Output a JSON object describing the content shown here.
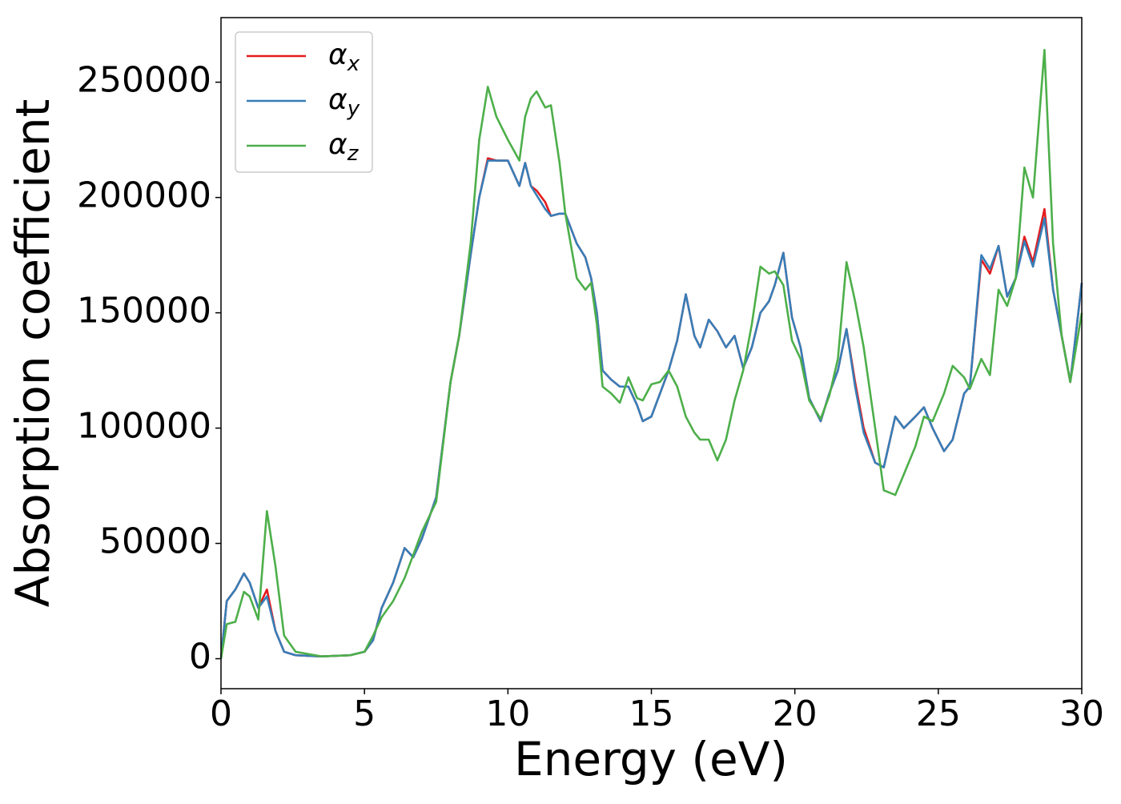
{
  "chart_data": {
    "type": "line",
    "xlabel": "Energy (eV)",
    "ylabel": "Absorption coefficient",
    "x": [
      0,
      0.2,
      0.5,
      0.8,
      1.0,
      1.3,
      1.6,
      1.9,
      2.2,
      2.6,
      3.5,
      4.5,
      5.0,
      5.3,
      5.6,
      6.0,
      6.4,
      6.7,
      7.0,
      7.5,
      8.0,
      8.3,
      8.7,
      9.0,
      9.3,
      9.6,
      10.0,
      10.4,
      10.6,
      10.8,
      11.0,
      11.3,
      11.5,
      11.8,
      12.0,
      12.4,
      12.7,
      12.9,
      13.1,
      13.3,
      13.6,
      13.9,
      14.2,
      14.5,
      14.7,
      15.0,
      15.3,
      15.6,
      15.9,
      16.2,
      16.5,
      16.7,
      17.0,
      17.3,
      17.6,
      17.9,
      18.2,
      18.5,
      18.8,
      19.1,
      19.3,
      19.6,
      19.9,
      20.2,
      20.5,
      20.9,
      21.2,
      21.5,
      21.8,
      22.1,
      22.4,
      22.8,
      23.1,
      23.5,
      23.8,
      24.2,
      24.5,
      24.8,
      25.2,
      25.5,
      25.9,
      26.1,
      26.5,
      26.8,
      27.1,
      27.4,
      27.7,
      28.0,
      28.3,
      28.7,
      29.0,
      29.3,
      29.6,
      30.0
    ],
    "series": [
      {
        "name": "αx",
        "color": "#e41a1c",
        "values": [
          0,
          25000,
          30000,
          37000,
          33000,
          22000,
          30000,
          12000,
          3000,
          1500,
          1000,
          1500,
          3000,
          8000,
          22000,
          33000,
          48000,
          44000,
          52000,
          70000,
          120000,
          140000,
          175000,
          200000,
          217000,
          216000,
          216000,
          205000,
          215000,
          205000,
          203000,
          198000,
          192000,
          193000,
          193000,
          180000,
          174000,
          165000,
          150000,
          125000,
          121000,
          118000,
          118000,
          110000,
          103000,
          105000,
          115000,
          125000,
          138000,
          158000,
          140000,
          135000,
          147000,
          142000,
          135000,
          140000,
          126000,
          135000,
          150000,
          155000,
          162000,
          176000,
          148000,
          135000,
          113000,
          103000,
          115000,
          125000,
          143000,
          120000,
          100000,
          85000,
          83000,
          105000,
          100000,
          105000,
          109000,
          100000,
          90000,
          95000,
          115000,
          118000,
          173000,
          167000,
          179000,
          157000,
          165000,
          183000,
          172000,
          195000,
          160000,
          140000,
          120000,
          163000
        ]
      },
      {
        "name": "αy",
        "color": "#377eb8",
        "values": [
          0,
          25000,
          30000,
          37000,
          33000,
          22000,
          27000,
          12000,
          3000,
          1500,
          1000,
          1500,
          3000,
          8000,
          22000,
          33000,
          48000,
          44000,
          52000,
          70000,
          120000,
          140000,
          175000,
          200000,
          216000,
          216000,
          216000,
          205000,
          215000,
          205000,
          201000,
          195000,
          192000,
          193000,
          193000,
          180000,
          174000,
          165000,
          150000,
          125000,
          121000,
          118000,
          118000,
          110000,
          103000,
          105000,
          115000,
          125000,
          138000,
          158000,
          140000,
          135000,
          147000,
          142000,
          135000,
          140000,
          126000,
          135000,
          150000,
          155000,
          162000,
          176000,
          148000,
          135000,
          113000,
          103000,
          115000,
          125000,
          143000,
          118000,
          98000,
          85000,
          83000,
          105000,
          100000,
          105000,
          109000,
          100000,
          90000,
          95000,
          115000,
          118000,
          175000,
          169000,
          179000,
          157000,
          165000,
          181000,
          170000,
          191000,
          160000,
          140000,
          120000,
          163000
        ]
      },
      {
        "name": "αz",
        "color": "#4daf4a",
        "values": [
          0,
          15000,
          16000,
          29000,
          27000,
          17000,
          64000,
          40000,
          10000,
          3000,
          1000,
          1500,
          3000,
          10000,
          18000,
          25000,
          35000,
          45000,
          55000,
          68000,
          120000,
          140000,
          180000,
          225000,
          248000,
          235000,
          225000,
          216000,
          235000,
          243000,
          246000,
          239000,
          240000,
          215000,
          193000,
          165000,
          160000,
          163000,
          145000,
          118000,
          115000,
          111000,
          122000,
          113000,
          112000,
          119000,
          120000,
          125000,
          118000,
          105000,
          98000,
          95000,
          95000,
          86000,
          95000,
          112000,
          125000,
          145000,
          170000,
          167000,
          168000,
          162000,
          138000,
          130000,
          112000,
          104000,
          114000,
          130000,
          172000,
          155000,
          135000,
          100000,
          73000,
          71000,
          80000,
          92000,
          105000,
          103000,
          115000,
          127000,
          122000,
          117000,
          130000,
          123000,
          160000,
          153000,
          165000,
          213000,
          200000,
          264000,
          180000,
          140000,
          120000,
          150000
        ]
      }
    ],
    "xlim": [
      0,
      30
    ],
    "xticks": [
      0,
      5,
      10,
      15,
      20,
      25,
      30
    ],
    "ylim": [
      -13000,
      278000
    ],
    "yticks": [
      0,
      50000,
      100000,
      150000,
      200000,
      250000
    ],
    "grid": false,
    "legend": "upper left"
  }
}
